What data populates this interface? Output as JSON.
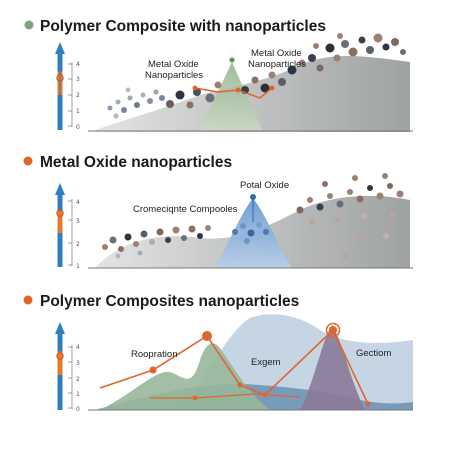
{
  "panels": [
    {
      "title": "Polymer Composite with nanoparticles",
      "title_dot_color": "#7fa283",
      "labels": [
        "Metal Oxide\nNanoparticles",
        "Metal Oxide\nNanoparticles"
      ],
      "ticks": [
        "0",
        "1",
        "2",
        "3",
        "4"
      ],
      "colors": {
        "hill": "#b9bcbb",
        "peak": "#a9c3a0",
        "line": "#e0652b"
      }
    },
    {
      "title": "Metal Oxide nanoparticles",
      "title_dot_color": "#e0652b",
      "labels": [
        "Cromeciqnte Compooles",
        "Potal Oxide"
      ],
      "ticks": [
        "1",
        "2",
        "3",
        "4"
      ],
      "colors": {
        "hill": "#b9bcbb",
        "peak": "#8fb3d9",
        "line": "#2f6ea8"
      }
    },
    {
      "title": "Polymer Composites nanoparticles",
      "title_dot_color": "#e0652b",
      "labels": [
        "Roopration",
        "Exgem",
        "Gectiom"
      ],
      "ticks": [
        "0",
        "1",
        "2",
        "3",
        "4"
      ],
      "colors": {
        "back": "#c5d5e4",
        "mid": "#5d87ad",
        "green": "#98b79a",
        "purple": "#8a7a98",
        "line": "#e0652b"
      }
    }
  ]
}
